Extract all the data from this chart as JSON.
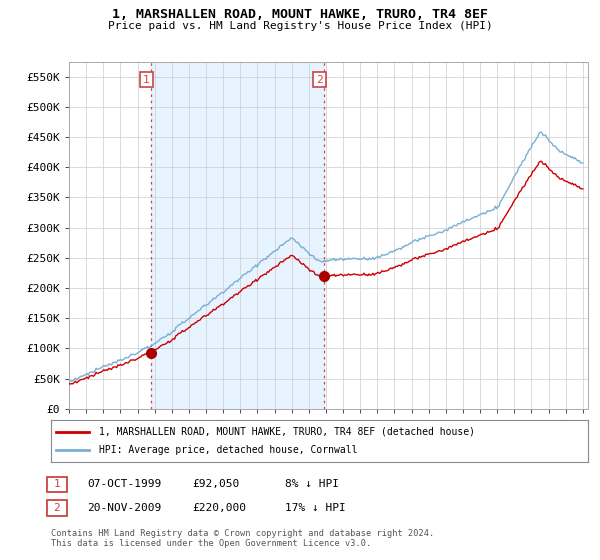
{
  "title": "1, MARSHALLEN ROAD, MOUNT HAWKE, TRURO, TR4 8EF",
  "subtitle": "Price paid vs. HM Land Registry's House Price Index (HPI)",
  "ylabel_ticks": [
    "£0",
    "£50K",
    "£100K",
    "£150K",
    "£200K",
    "£250K",
    "£300K",
    "£350K",
    "£400K",
    "£450K",
    "£500K",
    "£550K"
  ],
  "ylim": [
    0,
    575000
  ],
  "yticks": [
    0,
    50000,
    100000,
    150000,
    200000,
    250000,
    300000,
    350000,
    400000,
    450000,
    500000,
    550000
  ],
  "sale1_date": "07-OCT-1999",
  "sale1_price": 92050,
  "sale1_label": "1",
  "sale1_year": 1999.77,
  "sale2_date": "20-NOV-2009",
  "sale2_price": 220000,
  "sale2_label": "2",
  "sale2_year": 2009.88,
  "hpi_color": "#7bafd4",
  "hpi_fill_color": "#ddeeff",
  "price_color": "#cc0000",
  "marker_color": "#aa0000",
  "vline_color": "#cc4444",
  "grid_color": "#cccccc",
  "background_color": "#ffffff",
  "legend_label_red": "1, MARSHALLEN ROAD, MOUNT HAWKE, TRURO, TR4 8EF (detached house)",
  "legend_label_blue": "HPI: Average price, detached house, Cornwall",
  "footer_line1": "Contains HM Land Registry data © Crown copyright and database right 2024.",
  "footer_line2": "This data is licensed under the Open Government Licence v3.0.",
  "sale1_pct": "8%",
  "sale2_pct": "17%"
}
